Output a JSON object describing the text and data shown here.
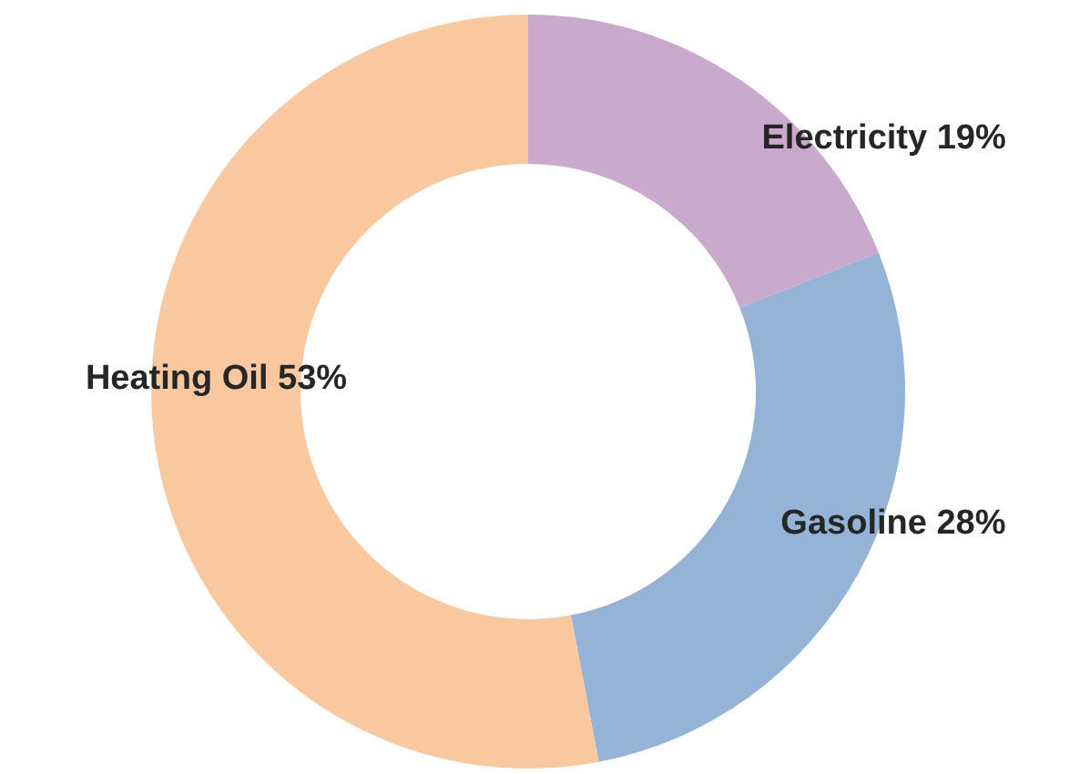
{
  "chart_data": {
    "type": "donut",
    "categories": [
      "Electricity",
      "Gasoline",
      "Heating Oil"
    ],
    "values": [
      19,
      28,
      53
    ],
    "value_labels": [
      "19%",
      "28%",
      "53%"
    ],
    "colors": [
      "#c9a9cc",
      "#95b3d7",
      "#fac89f"
    ]
  }
}
